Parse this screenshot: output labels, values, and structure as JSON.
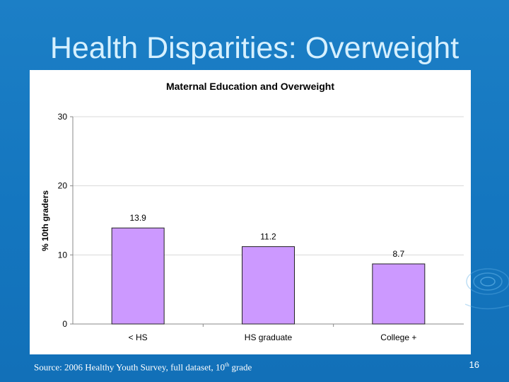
{
  "slide": {
    "title": "Health Disparities: Overweight",
    "source_prefix": "Source: 2006 Healthy Youth Survey, full dataset, 10",
    "source_sup": "th",
    "source_suffix": " grade",
    "page_number": "16"
  },
  "colors": {
    "background": "#1776c0",
    "bar_fill": "#cc99ff",
    "bar_stroke": "#222222"
  },
  "chart_data": {
    "type": "bar",
    "title": "Maternal Education and Overweight",
    "xlabel": "",
    "ylabel": "% 10th graders",
    "categories": [
      "< HS",
      "HS graduate",
      "College +"
    ],
    "values": [
      13.9,
      11.2,
      8.7
    ],
    "data_labels": [
      "13.9",
      "11.2",
      "8.7"
    ],
    "ylim": [
      0,
      30
    ],
    "yticks": [
      0,
      10,
      20,
      30
    ],
    "grid": true,
    "legend": false
  }
}
